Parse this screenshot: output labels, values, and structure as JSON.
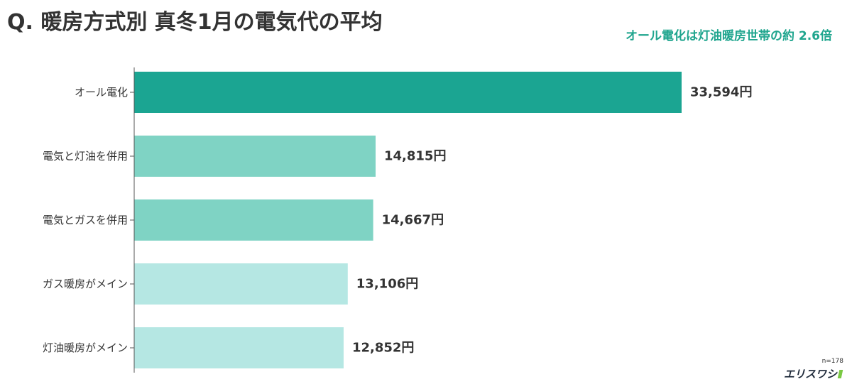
{
  "title": "Q. 暖房方式別 真冬1月の電気代の平均",
  "subtitle": "オール電化は灯油暖房世帯の約 2.6倍",
  "sample_note": "n=178",
  "logo": {
    "text": "エリスワシ",
    "icon": "leaf-mark-icon"
  },
  "colors": {
    "dark_teal": "#1ba592",
    "mid_teal": "#7fd3c4",
    "light_teal": "#b5e7e3",
    "accent": "#1fa58e",
    "text": "#333333"
  },
  "chart_data": {
    "type": "bar",
    "orientation": "horizontal",
    "categories": [
      "オール電化",
      "電気と灯油を併用",
      "電気とガスを併用",
      "ガス暖房がメイン",
      "灯油暖房がメイン"
    ],
    "values": [
      33594,
      14815,
      14667,
      13106,
      12852
    ],
    "value_labels": [
      "33,594円",
      "14,815円",
      "14,667円",
      "13,106円",
      "12,852円"
    ],
    "bar_colors": [
      "#1ba592",
      "#7fd3c4",
      "#7fd3c4",
      "#b5e7e3",
      "#b5e7e3"
    ],
    "title": "Q. 暖房方式別 真冬1月の電気代の平均",
    "xlabel": "",
    "ylabel": "",
    "xlim": [
      0,
      33594
    ],
    "grid": false
  }
}
